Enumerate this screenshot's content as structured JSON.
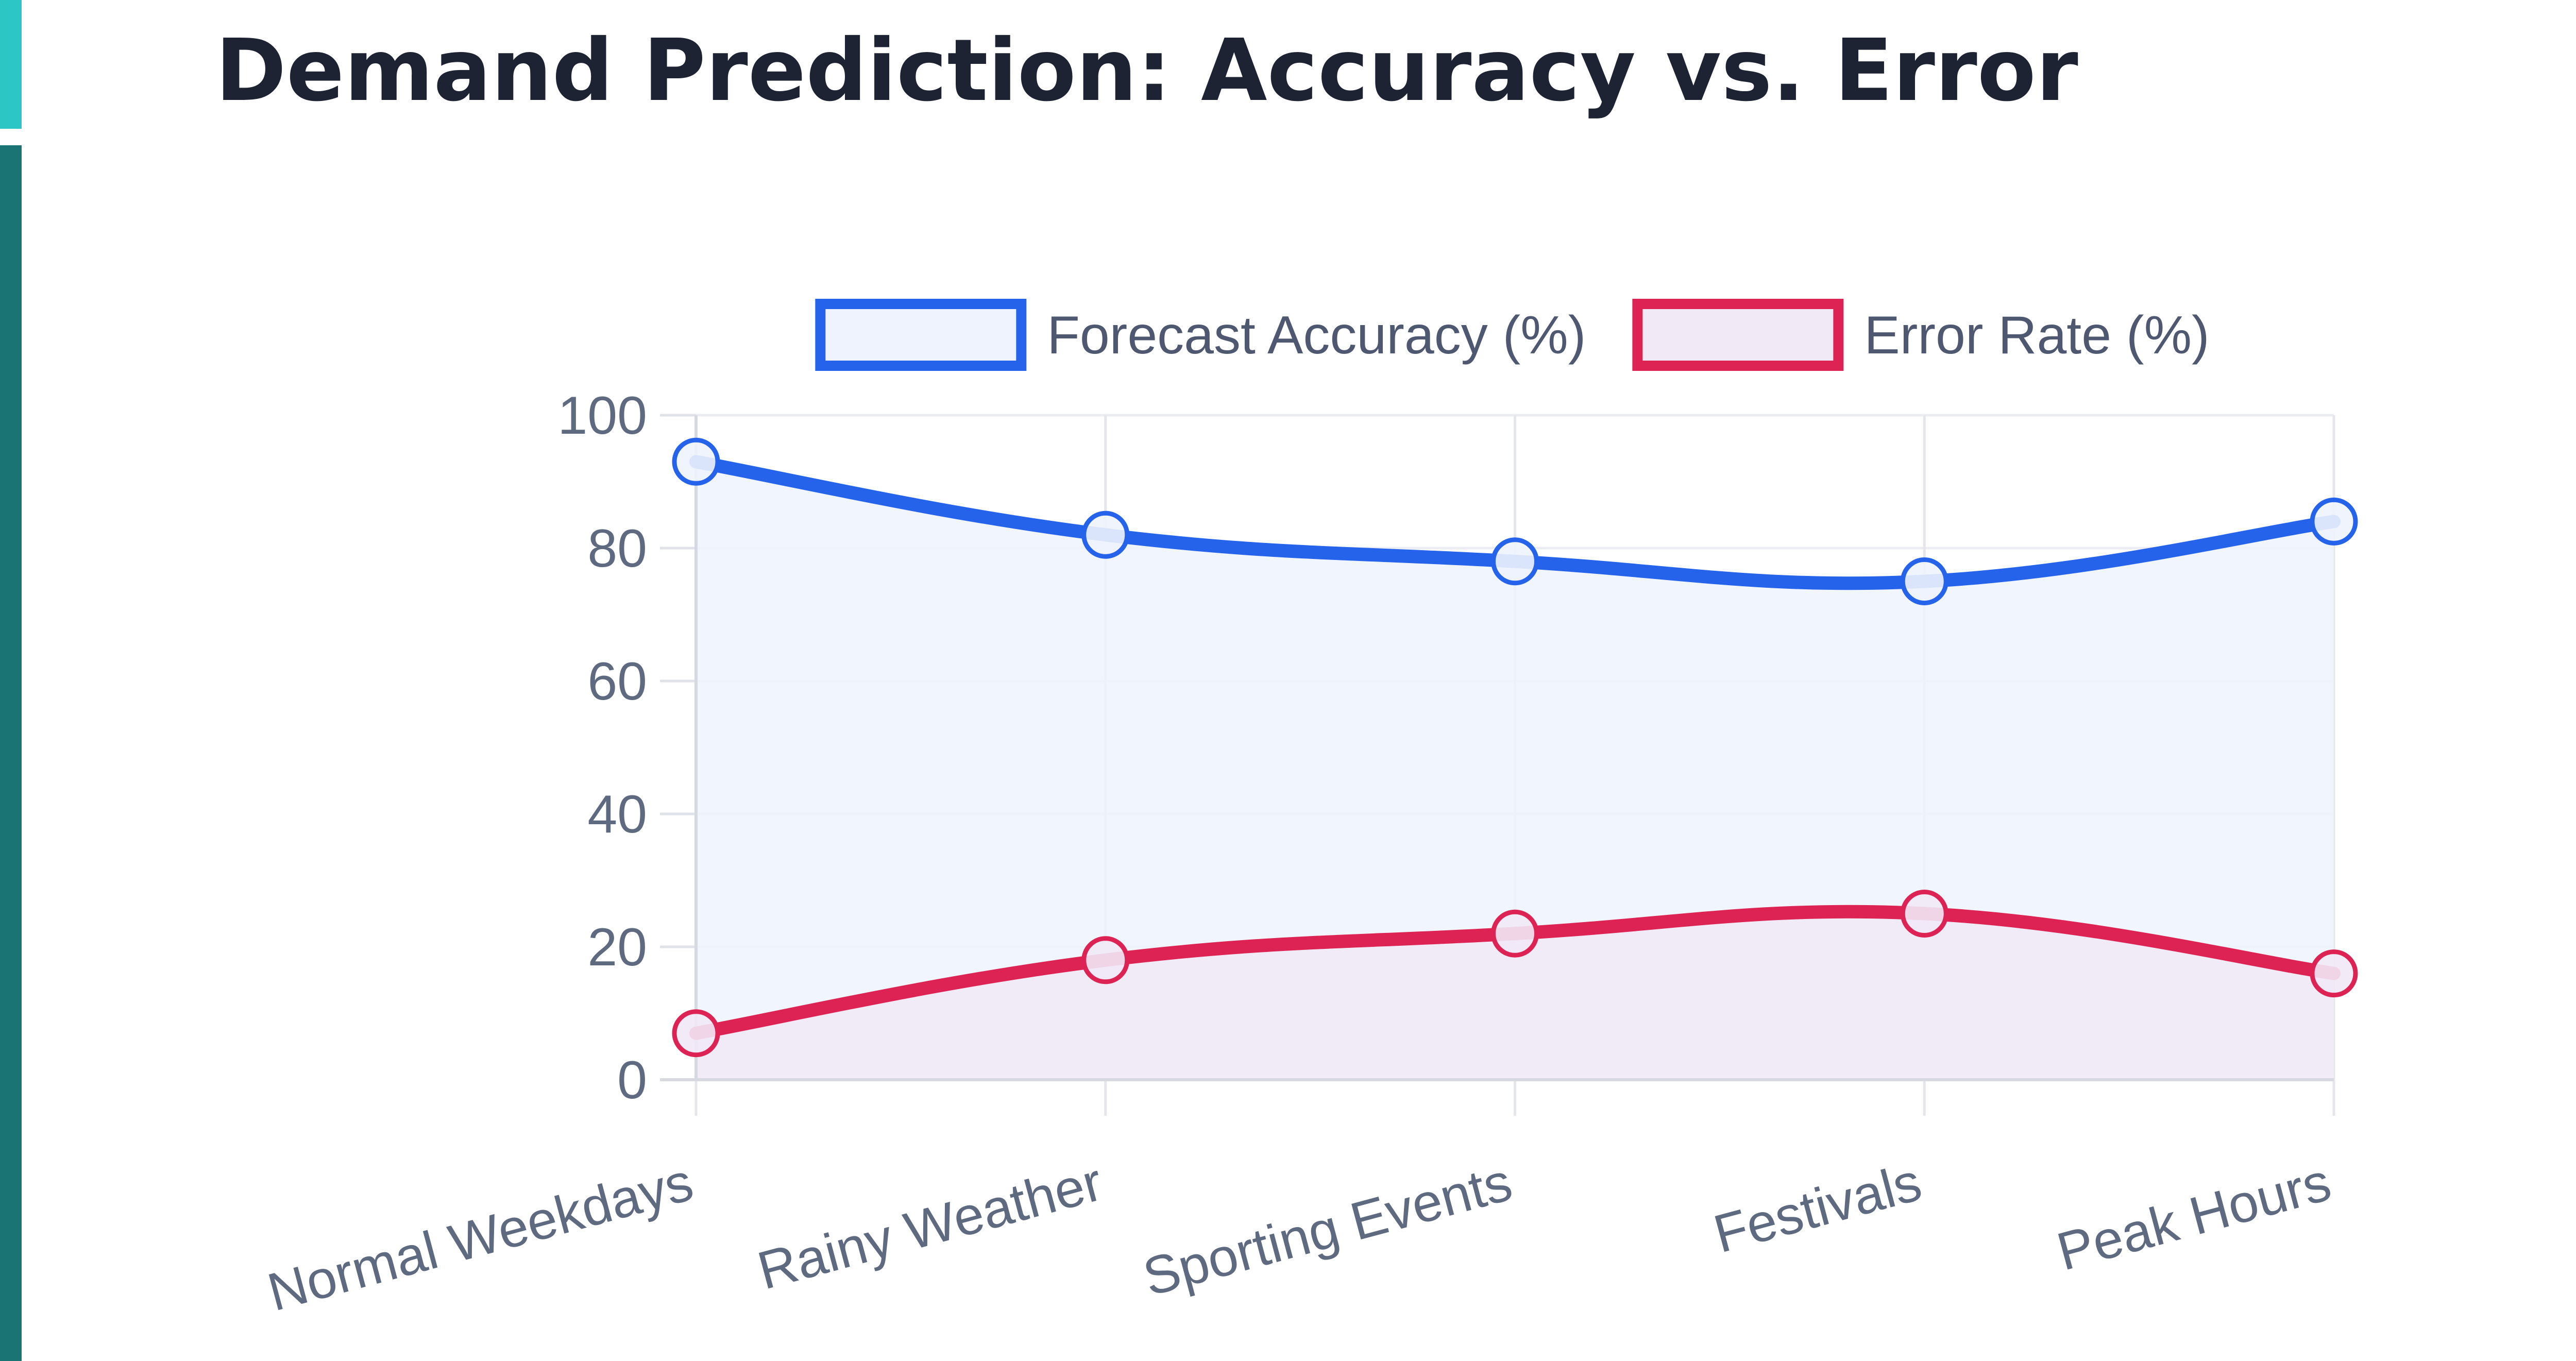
{
  "title": "Demand Prediction: Accuracy vs. Error",
  "chart_data": {
    "type": "line",
    "title": "Demand Prediction: Accuracy vs. Error",
    "categories": [
      "Normal Weekdays",
      "Rainy Weather",
      "Sporting Events",
      "Festivals",
      "Peak Hours"
    ],
    "series": [
      {
        "name": "Forecast Accuracy (%)",
        "values": [
          93,
          82,
          78,
          75,
          84
        ],
        "color": "#2563eb",
        "fill": "#eef3fd"
      },
      {
        "name": "Error Rate (%)",
        "values": [
          7,
          18,
          22,
          25,
          16
        ],
        "color": "#dc2353",
        "fill": "#f1e9f6"
      }
    ],
    "y_ticks": [
      "0",
      "20",
      "40",
      "60",
      "80",
      "100"
    ],
    "ylim": [
      0,
      100
    ],
    "grid": true,
    "legend": "top",
    "filled": true,
    "smooth": true
  }
}
